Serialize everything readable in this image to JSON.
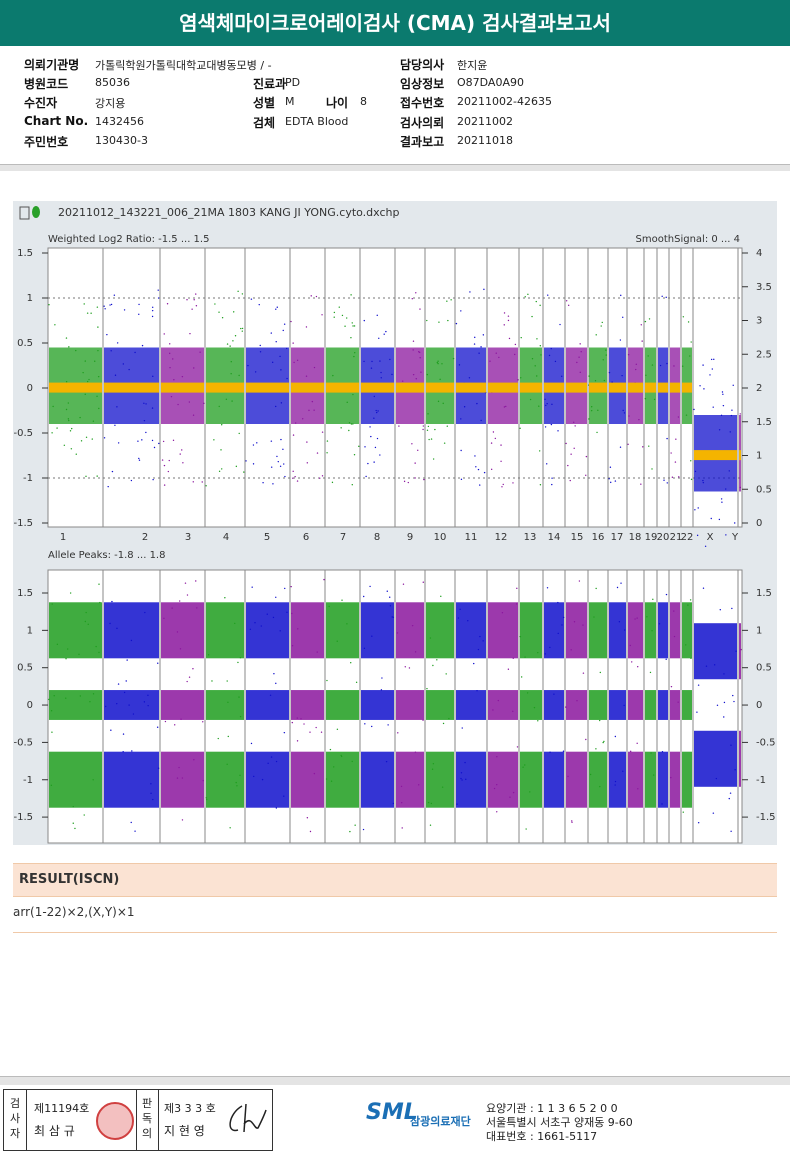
{
  "header": {
    "title": "염색체마이크로어레이검사 (CMA) 검사결과보고서"
  },
  "info": {
    "col1": [
      {
        "label": "의뢰기관명",
        "value": "가톨릭학원가톨릭대학교대병동모병 / -"
      },
      {
        "label": "병원코드",
        "value": "85036"
      },
      {
        "label": "수진자",
        "value": "강지용"
      },
      {
        "label": "Chart No.",
        "value": "1432456"
      },
      {
        "label": "주민번호",
        "value": "130430-3"
      }
    ],
    "col2": [
      {
        "label": "진료과",
        "value": "PD"
      },
      {
        "label": "성별",
        "value": "M"
      },
      {
        "label": "검체",
        "value": "EDTA Blood"
      }
    ],
    "age": {
      "label": "나이",
      "value": "8"
    },
    "col3": [
      {
        "label": "담당의사",
        "value": "한지윤"
      },
      {
        "label": "임상정보",
        "value": "O87DA0A90"
      },
      {
        "label": "접수번호",
        "value": "20211002-42635"
      },
      {
        "label": "검사의뢰",
        "value": "20211002"
      },
      {
        "label": "결과보고",
        "value": "20211018"
      }
    ]
  },
  "plot": {
    "file": "20211012_143221_006_21MA 1803 KANG JI YONG.cyto.dxchp",
    "panel1": {
      "left_title": "Weighted Log2 Ratio: -1.5 ... 1.5",
      "right_title": "SmoothSignal: 0 ... 4",
      "left_ticks": [
        "1.5",
        "1",
        "0.5",
        "0",
        "-0.5",
        "-1",
        "-1.5"
      ],
      "right_ticks": [
        "4",
        "3.5",
        "3",
        "2.5",
        "2",
        "1.5",
        "1",
        "0.5",
        "0"
      ]
    },
    "chromosomes": [
      "1",
      "2",
      "3",
      "4",
      "5",
      "6",
      "7",
      "8",
      "9",
      "10",
      "11",
      "12",
      "13",
      "14",
      "15",
      "16",
      "17",
      "18",
      "19",
      "20",
      "21",
      "22",
      "X",
      "Y"
    ],
    "panel2": {
      "left_title": "Allele Peaks: -1.8 ... 1.8",
      "left_ticks": [
        "1.5",
        "1",
        "0.5",
        "0",
        "-0.5",
        "-1",
        "-1.5"
      ],
      "right_ticks": [
        "1.5",
        "1",
        "0.5",
        "0",
        "-0.5",
        "-1",
        "-1.5"
      ]
    }
  },
  "result": {
    "heading": "RESULT(ISCN)",
    "text": "arr(1-22)×2,(X,Y)×1"
  },
  "footer": {
    "role1": "검사자",
    "no1": "제11194호",
    "name1": "최 삼 규",
    "role2": "판독의",
    "no2": "제3 3 3 호",
    "name2": "지 현 영",
    "logo": "SML",
    "org": "삼광의료재단",
    "code": "요양기관 : 1 1 3 6 5 2 0 0",
    "address": "서울특별시 서초구 양재동 9-60",
    "phone": "대표번호 : 1661-5117"
  }
}
